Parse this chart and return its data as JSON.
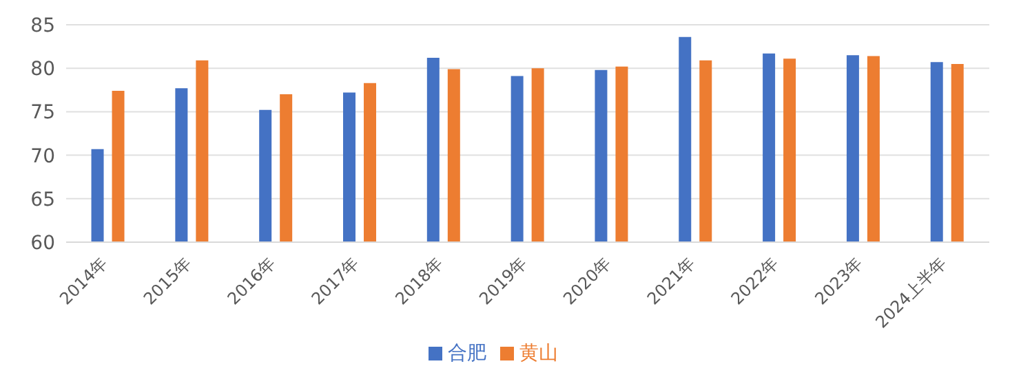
{
  "chart_data": {
    "type": "bar",
    "categories": [
      "2014年",
      "2015年",
      "2016年",
      "2017年",
      "2018年",
      "2019年",
      "2020年",
      "2021年",
      "2022年",
      "2023年",
      "2024上半年"
    ],
    "series": [
      {
        "name": "合肥",
        "color": "#4472c4",
        "values": [
          70.7,
          77.7,
          75.2,
          77.2,
          81.2,
          79.1,
          79.8,
          83.6,
          81.7,
          81.5,
          80.7
        ]
      },
      {
        "name": "黄山",
        "color": "#ed7d31",
        "values": [
          77.4,
          80.9,
          77.0,
          78.3,
          79.9,
          80.0,
          80.2,
          80.9,
          81.1,
          81.4,
          80.5
        ]
      }
    ],
    "ylim": [
      60,
      85
    ],
    "yticks": [
      60,
      65,
      70,
      75,
      80,
      85
    ],
    "grid": "y",
    "legend": "bottom"
  }
}
